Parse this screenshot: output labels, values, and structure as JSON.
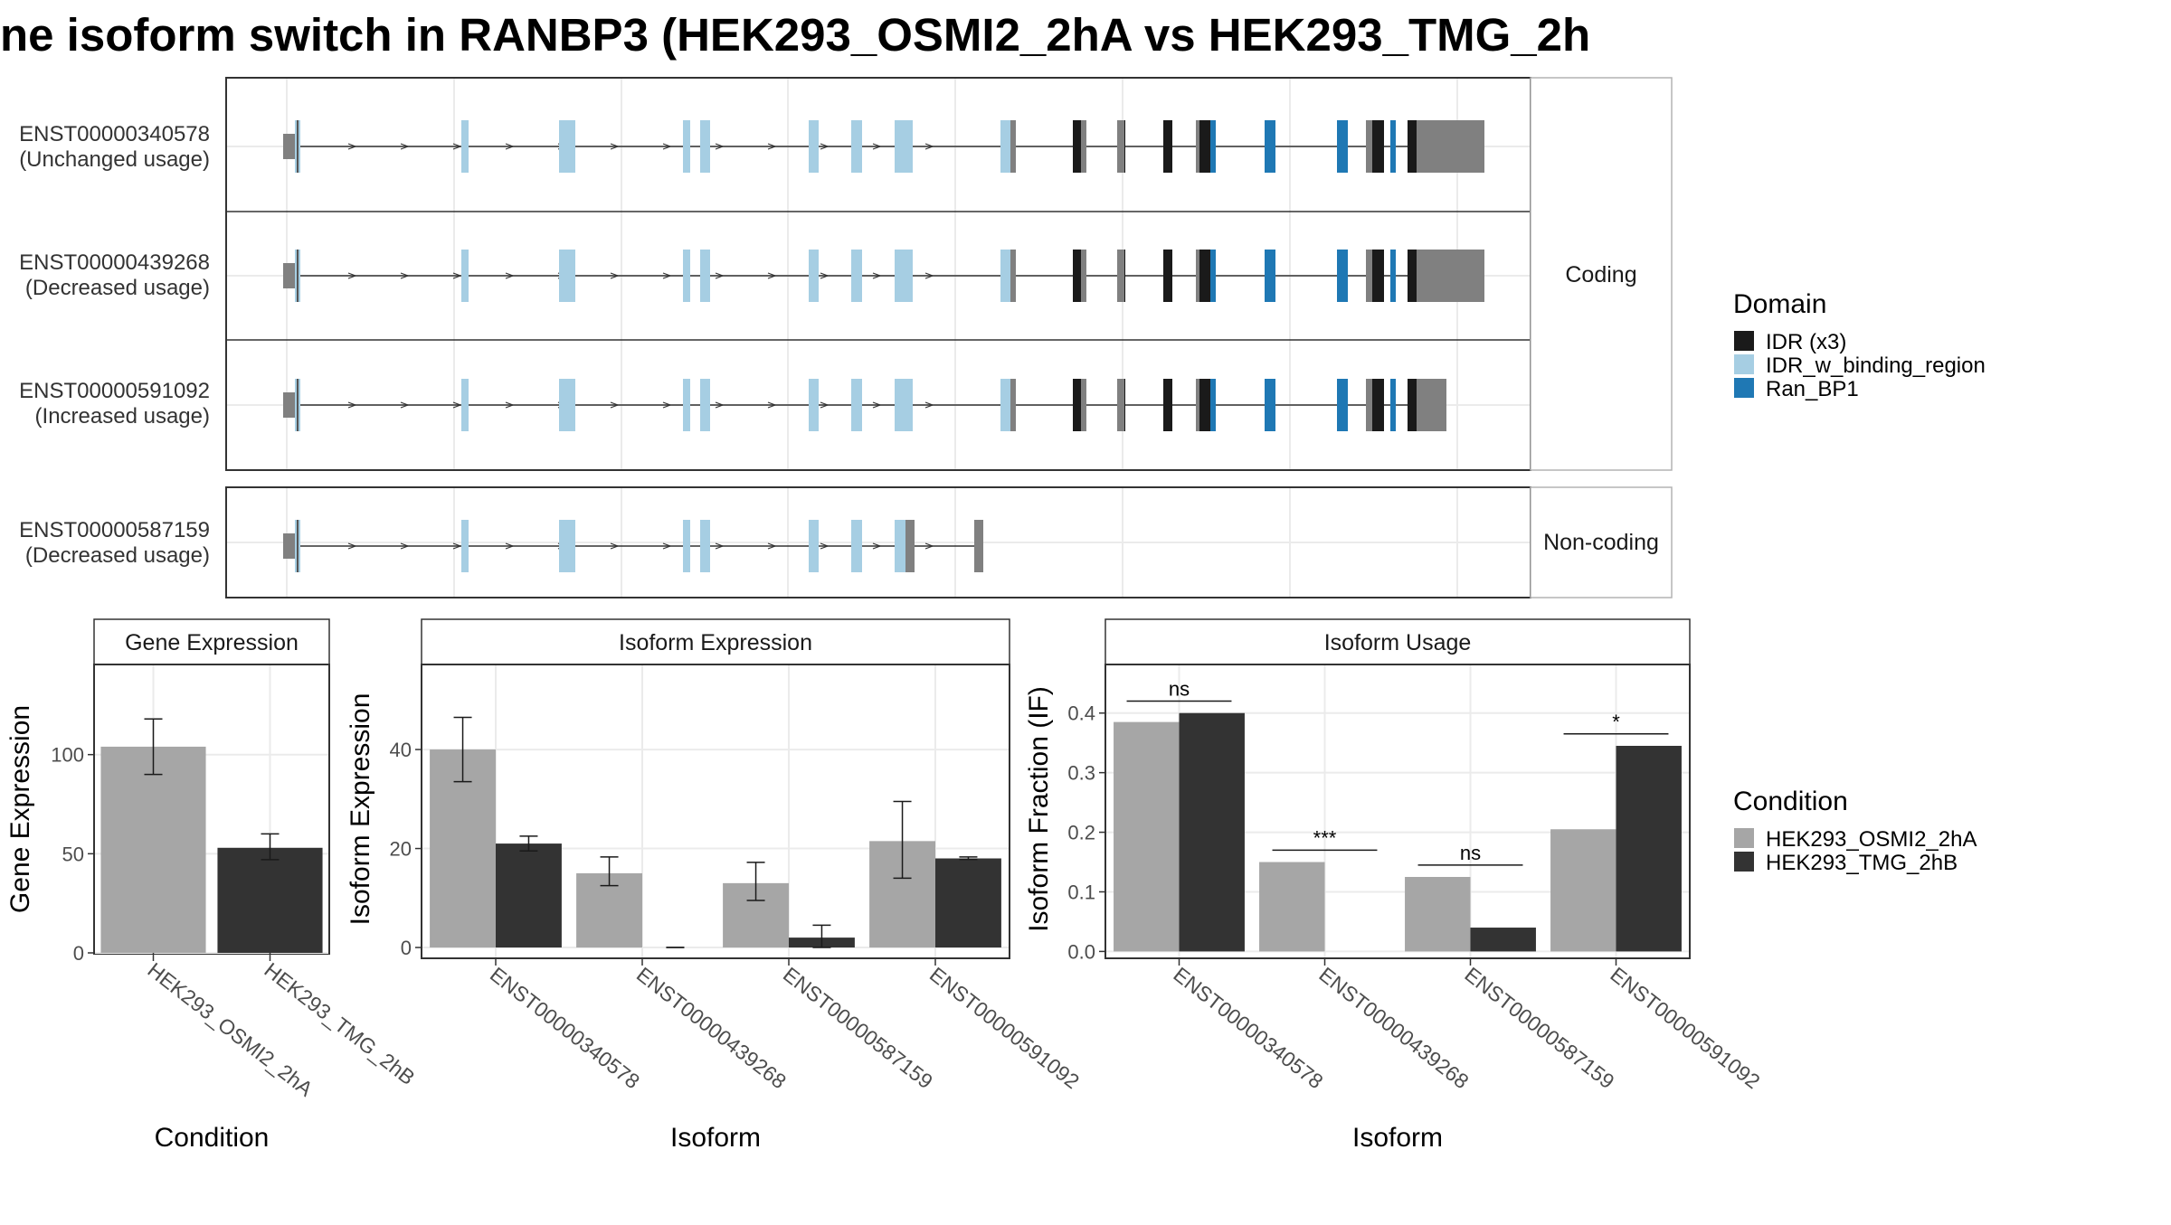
{
  "title": "ne isoform switch in RANBP3 (HEK293_OSMI2_2hA vs HEK293_TMG_2h",
  "colors": {
    "utr": "#808080",
    "idr": "#1a1a1a",
    "idr_binding": "#a6cee3",
    "ran_bp1": "#1f78b4",
    "cond_a": "#a6a6a6",
    "cond_b": "#333333"
  },
  "structure": {
    "coding_label": "Coding",
    "noncoding_label": "Non-coding",
    "transcripts": [
      {
        "id": "ENST00000340578",
        "usage": "(Unchanged usage)",
        "group": "coding"
      },
      {
        "id": "ENST00000439268",
        "usage": "(Decreased usage)",
        "group": "coding"
      },
      {
        "id": "ENST00000591092",
        "usage": "(Increased usage)",
        "group": "coding"
      },
      {
        "id": "ENST00000587159",
        "usage": "(Decreased usage)",
        "group": "noncoding"
      }
    ]
  },
  "legend_domain": {
    "title": "Domain",
    "items": [
      {
        "label": "IDR (x3)",
        "color": "#1a1a1a"
      },
      {
        "label": "IDR_w_binding_region",
        "color": "#a6cee3"
      },
      {
        "label": "Ran_BP1",
        "color": "#1f78b4"
      }
    ]
  },
  "legend_condition": {
    "title": "Condition",
    "items": [
      {
        "label": "HEK293_OSMI2_2hA",
        "color": "#a6a6a6"
      },
      {
        "label": "HEK293_TMG_2hB",
        "color": "#333333"
      }
    ]
  },
  "chart_data": [
    {
      "type": "bar",
      "title": "Gene Expression",
      "xlabel": "Condition",
      "ylabel": "Gene Expression",
      "categories": [
        "HEK293_OSMI2_2hA",
        "HEK293_TMG_2hB"
      ],
      "values": [
        104,
        53
      ],
      "errors": [
        [
          90,
          118
        ],
        [
          47,
          60
        ]
      ],
      "ylim": [
        0,
        145
      ],
      "yticks": [
        0,
        50,
        100
      ]
    },
    {
      "type": "bar",
      "title": "Isoform Expression",
      "xlabel": "Isoform",
      "ylabel": "Isoform Expression",
      "categories": [
        "ENST00000340578",
        "ENST00000439268",
        "ENST00000587159",
        "ENST00000591092"
      ],
      "series": [
        {
          "name": "HEK293_OSMI2_2hA",
          "values": [
            40,
            15,
            13,
            21.5
          ],
          "errors": [
            [
              33.5,
              46.5
            ],
            [
              12.5,
              18.3
            ],
            [
              9.5,
              17.2
            ],
            [
              14,
              29.5
            ]
          ]
        },
        {
          "name": "HEK293_TMG_2hB",
          "values": [
            21,
            0,
            2,
            18
          ],
          "errors": [
            [
              19.5,
              22.5
            ],
            [
              0,
              0
            ],
            [
              0,
              4.5
            ],
            [
              17.8,
              18.3
            ]
          ]
        }
      ],
      "ylim": [
        -2,
        57
      ],
      "yticks": [
        0,
        20,
        40
      ]
    },
    {
      "type": "bar",
      "title": "Isoform Usage",
      "xlabel": "Isoform",
      "ylabel": "Isoform Fraction (IF)",
      "categories": [
        "ENST00000340578",
        "ENST00000439268",
        "ENST00000587159",
        "ENST00000591092"
      ],
      "series": [
        {
          "name": "HEK293_OSMI2_2hA",
          "values": [
            0.385,
            0.15,
            0.125,
            0.205
          ]
        },
        {
          "name": "HEK293_TMG_2hB",
          "values": [
            0.4,
            0.0,
            0.04,
            0.345
          ]
        }
      ],
      "significance": [
        "ns",
        "***",
        "ns",
        "*"
      ],
      "ylim": [
        -0.01,
        0.48
      ],
      "yticks": [
        0.0,
        0.1,
        0.2,
        0.3,
        0.4
      ],
      "ytick_labels": [
        "0.0",
        "0.1",
        "0.2",
        "0.3",
        "0.4"
      ]
    }
  ]
}
